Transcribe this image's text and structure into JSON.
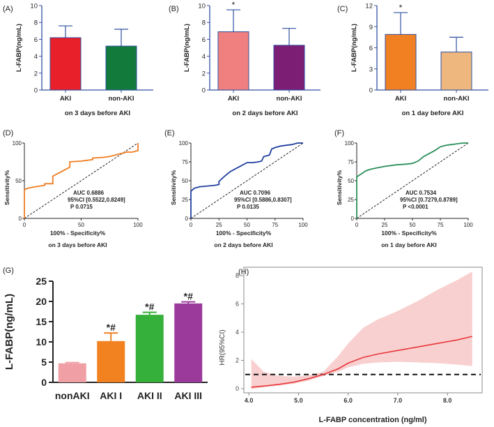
{
  "figure": {
    "panels": [
      "(A)",
      "(B)",
      "(C)",
      "(D)",
      "(E)",
      "(F)",
      "(G)",
      "(H)"
    ]
  },
  "colors": {
    "red": "#e8202a",
    "dark_green": "#127a3a",
    "pink": "#f08080",
    "purple": "#7b1e74",
    "orange": "#f08022",
    "tan": "#edb77e",
    "roc_orange": "#f07c20",
    "roc_blue": "#1f3f9f",
    "roc_green": "#2b8f5b",
    "g_pink": "#f0a0a4",
    "g_orange": "#f28120",
    "g_green": "#35b03a",
    "g_purple": "#9c3a9c",
    "h_line": "#e8373a",
    "h_band": "#f7c8c8",
    "axis_blue": "#3050a0"
  },
  "chart_data": [
    {
      "panel": "(A)",
      "type": "bar",
      "ylabel": "L-FABP(ng/mL)",
      "xlabel": "on 3 days before AKI",
      "categories": [
        "AKI",
        "non-AKI"
      ],
      "values": [
        6.2,
        5.2
      ],
      "errors": [
        1.4,
        2.0
      ],
      "colors": [
        "#e8202a",
        "#127a3a"
      ],
      "ylim": [
        0,
        10
      ],
      "yticks": [
        "0",
        "2",
        "4",
        "6",
        "8",
        "10"
      ],
      "star_labels": [
        "",
        ""
      ]
    },
    {
      "panel": "(B)",
      "type": "bar",
      "ylabel": "L-FABP(ng/mL)",
      "xlabel": "on 2 days before AKI",
      "categories": [
        "AKI",
        "non-AKI"
      ],
      "values": [
        6.9,
        5.3
      ],
      "errors": [
        2.6,
        2.0
      ],
      "colors": [
        "#f08080",
        "#7b1e74"
      ],
      "ylim": [
        0,
        10
      ],
      "yticks": [
        "0",
        "2",
        "4",
        "6",
        "8",
        "10"
      ],
      "star_labels": [
        "*",
        ""
      ]
    },
    {
      "panel": "(C)",
      "type": "bar",
      "ylabel": "L-FABP(ng/mL)",
      "xlabel": "on 1 day before AKI",
      "categories": [
        "AKI",
        "non-AKI"
      ],
      "values": [
        7.9,
        5.4
      ],
      "errors": [
        3.1,
        2.1
      ],
      "colors": [
        "#f08022",
        "#edb77e"
      ],
      "ylim": [
        0,
        12
      ],
      "yticks": [
        "0",
        "3",
        "6",
        "9",
        "12"
      ],
      "star_labels": [
        "*",
        ""
      ]
    },
    {
      "panel": "(D)",
      "type": "line",
      "subtype": "roc",
      "xlabel": "100% - Specificity%",
      "ylabel": "Sensitivity%",
      "caption": "on 3 days before AKI",
      "color": "#f07c20",
      "xlim": [
        0,
        100
      ],
      "ylim": [
        0,
        100
      ],
      "xticks": [
        "0",
        "50",
        "100"
      ],
      "yticks": [
        "0",
        "50",
        "100"
      ],
      "annotation": [
        "AUC 0.6886",
        "95%CI [0.5522,0.8249]",
        "P 0.0715"
      ],
      "x": [
        0,
        0,
        3,
        10,
        18,
        18,
        25,
        25,
        30,
        35,
        40,
        40,
        50,
        55,
        60,
        60,
        70,
        75,
        80,
        85,
        90,
        95,
        100,
        100
      ],
      "y": [
        0,
        38,
        40,
        42,
        44,
        46,
        46,
        56,
        60,
        64,
        68,
        75,
        76,
        77,
        78,
        80,
        81,
        82,
        84,
        86,
        88,
        88,
        90,
        100
      ]
    },
    {
      "panel": "(E)",
      "type": "line",
      "subtype": "roc",
      "xlabel": "100% - Specificity%",
      "ylabel": "Sensitivity%",
      "caption": "on 2 days before AKI",
      "color": "#1f3f9f",
      "xlim": [
        0,
        100
      ],
      "ylim": [
        0,
        100
      ],
      "xticks": [
        "0",
        "25",
        "50",
        "75",
        "100"
      ],
      "yticks": [
        "0",
        "25",
        "50",
        "75",
        "100"
      ],
      "annotation": [
        "AUC 0.7096",
        "95%CI [0.5886,0.8307]",
        "P 0.0135"
      ],
      "x": [
        0,
        0,
        3,
        8,
        15,
        22,
        25,
        25,
        30,
        35,
        40,
        45,
        50,
        55,
        60,
        63,
        65,
        70,
        72,
        75,
        80,
        85,
        90,
        95,
        100
      ],
      "y": [
        0,
        36,
        40,
        42,
        43,
        44,
        45,
        49,
        56,
        62,
        66,
        70,
        74,
        74,
        75,
        76,
        82,
        84,
        92,
        94,
        96,
        97,
        98,
        100,
        100
      ]
    },
    {
      "panel": "(F)",
      "type": "line",
      "subtype": "roc",
      "xlabel": "100% - Specificity%",
      "ylabel": "Sensitivity%",
      "caption": "on 1 day before AKI",
      "color": "#2b8f5b",
      "xlim": [
        0,
        100
      ],
      "ylim": [
        0,
        100
      ],
      "xticks": [
        "0",
        "25",
        "50",
        "75",
        "100"
      ],
      "yticks": [
        "0",
        "25",
        "50",
        "75",
        "100"
      ],
      "annotation": [
        "AUC 0.7534",
        "95%CI [0.7279,0.8789]",
        "P <0.0001"
      ],
      "x": [
        0,
        0,
        2,
        5,
        8,
        12,
        18,
        25,
        35,
        45,
        50,
        55,
        60,
        65,
        70,
        75,
        80,
        85,
        90,
        95,
        100
      ],
      "y": [
        0,
        55,
        57,
        60,
        63,
        65,
        67,
        69,
        71,
        72,
        73,
        76,
        82,
        86,
        90,
        95,
        97,
        98,
        99,
        100,
        100
      ]
    },
    {
      "panel": "(G)",
      "type": "bar",
      "ylabel": "L-FABP(ng/mL)",
      "categories": [
        "nonAKI",
        "AKI I",
        "AKI II",
        "AKI III"
      ],
      "values": [
        4.7,
        10.2,
        16.7,
        19.5
      ],
      "errors": [
        0.2,
        2.0,
        0.6,
        0.4
      ],
      "colors": [
        "#f0a0a4",
        "#f28120",
        "#35b03a",
        "#9c3a9c"
      ],
      "ylim": [
        0,
        25
      ],
      "yticks": [
        "0",
        "5",
        "10",
        "15",
        "20",
        "25"
      ],
      "star_labels": [
        "",
        "*#",
        "*#",
        "*#"
      ]
    },
    {
      "panel": "(H)",
      "type": "line",
      "subtype": "restricted-cubic-spline",
      "xlabel": "L-FABP concentration (ng/ml)",
      "ylabel": "HR(95%CI)",
      "xlim": [
        3.9,
        8.7
      ],
      "ylim": [
        -0.3,
        8.6
      ],
      "xticks_values": [
        4.0,
        5.0,
        6.0,
        7.0,
        8.0
      ],
      "xticks": [
        "4.0",
        "5.0",
        "6.0",
        "7.0",
        "8.0"
      ],
      "yticks_values": [
        0,
        2,
        4,
        6,
        8
      ],
      "yticks": [
        "0",
        "2",
        "4",
        "6",
        "8"
      ],
      "reference_line": 1,
      "x": [
        4.05,
        4.3,
        4.6,
        4.9,
        5.2,
        5.5,
        5.8,
        6.0,
        6.3,
        6.6,
        7.0,
        7.4,
        7.8,
        8.2,
        8.5
      ],
      "y": [
        0.1,
        0.18,
        0.3,
        0.45,
        0.7,
        1.0,
        1.4,
        1.8,
        2.2,
        2.45,
        2.7,
        2.95,
        3.2,
        3.45,
        3.7
      ],
      "lower": [
        -0.05,
        0.1,
        0.2,
        0.35,
        0.55,
        0.9,
        1.2,
        1.5,
        1.75,
        1.85,
        1.9,
        1.85,
        1.8,
        1.7,
        1.6
      ],
      "upper": [
        2.1,
        1.2,
        0.9,
        0.85,
        0.95,
        1.2,
        2.3,
        3.2,
        4.3,
        4.9,
        5.5,
        6.2,
        7.0,
        7.7,
        8.3
      ]
    }
  ]
}
